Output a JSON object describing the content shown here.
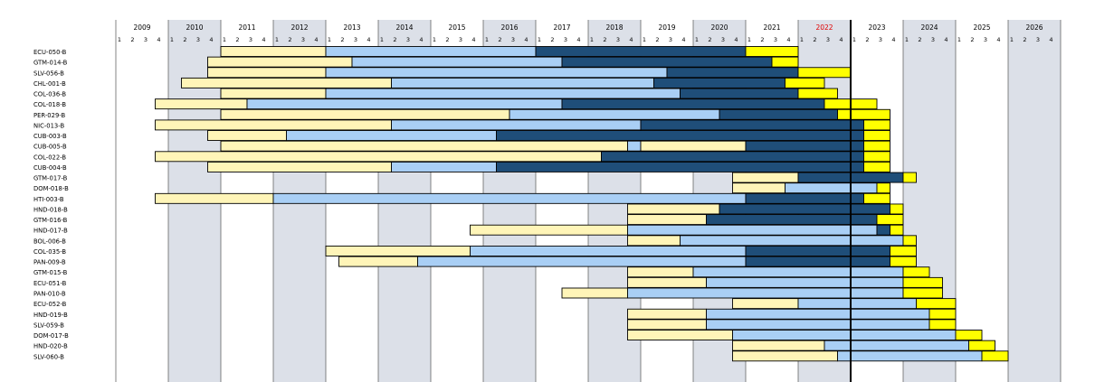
{
  "chart_data": {
    "type": "gantt",
    "start_year": 2009,
    "end_year": 2026,
    "quarter_labels": [
      "1",
      "2",
      "3",
      "4"
    ],
    "highlight_year": 2022,
    "current_marker": "2023 Q1",
    "colors": {
      "preparation": "#fff5b8",
      "execution": "#a9cff5",
      "late_execution": "#1f4e79",
      "extension": "#ffff00",
      "shade": "#dce0e8",
      "highlight_label": "#e00000",
      "marker": "#000000"
    },
    "rows": [
      {
        "label": "ECU-050-B",
        "segs": [
          [
            "2011 Q1",
            "2013 Q1",
            "preparation"
          ],
          [
            "2013 Q1",
            "2017 Q1",
            "execution"
          ],
          [
            "2017 Q1",
            "2021 Q1",
            "late_execution"
          ],
          [
            "2021 Q1",
            "2022 Q1",
            "extension"
          ]
        ]
      },
      {
        "label": "GTM-014-B",
        "segs": [
          [
            "2010 Q4",
            "2013 Q3",
            "preparation"
          ],
          [
            "2013 Q3",
            "2017 Q3",
            "execution"
          ],
          [
            "2017 Q3",
            "2021 Q3",
            "late_execution"
          ],
          [
            "2021 Q3",
            "2022 Q1",
            "extension"
          ]
        ]
      },
      {
        "label": "SLV-056-B",
        "segs": [
          [
            "2010 Q4",
            "2013 Q1",
            "preparation"
          ],
          [
            "2013 Q1",
            "2019 Q3",
            "execution"
          ],
          [
            "2019 Q3",
            "2022 Q1",
            "late_execution"
          ],
          [
            "2022 Q1",
            "2023 Q1",
            "extension"
          ]
        ]
      },
      {
        "label": "CHL-001-B",
        "segs": [
          [
            "2010 Q2",
            "2014 Q2",
            "preparation"
          ],
          [
            "2014 Q2",
            "2019 Q2",
            "execution"
          ],
          [
            "2019 Q2",
            "2021 Q4",
            "late_execution"
          ],
          [
            "2021 Q4",
            "2022 Q3",
            "extension"
          ]
        ]
      },
      {
        "label": "COL-036-B",
        "segs": [
          [
            "2011 Q1",
            "2013 Q1",
            "preparation"
          ],
          [
            "2013 Q1",
            "2019 Q4",
            "execution"
          ],
          [
            "2019 Q4",
            "2022 Q1",
            "late_execution"
          ],
          [
            "2022 Q1",
            "2022 Q4",
            "extension"
          ]
        ]
      },
      {
        "label": "COL-018-B",
        "segs": [
          [
            "2009 Q4",
            "2011 Q3",
            "preparation"
          ],
          [
            "2011 Q3",
            "2017 Q3",
            "execution"
          ],
          [
            "2017 Q3",
            "2022 Q3",
            "late_execution"
          ],
          [
            "2022 Q3",
            "2023 Q3",
            "extension"
          ]
        ]
      },
      {
        "label": "PER-029-B",
        "segs": [
          [
            "2011 Q1",
            "2016 Q3",
            "preparation"
          ],
          [
            "2016 Q3",
            "2020 Q3",
            "execution"
          ],
          [
            "2020 Q3",
            "2022 Q4",
            "late_execution"
          ],
          [
            "2022 Q4",
            "2023 Q4",
            "extension"
          ]
        ]
      },
      {
        "label": "NIC-013-B",
        "segs": [
          [
            "2009 Q4",
            "2014 Q2",
            "preparation"
          ],
          [
            "2014 Q2",
            "2019 Q1",
            "execution"
          ],
          [
            "2019 Q1",
            "2023 Q2",
            "late_execution"
          ],
          [
            "2023 Q2",
            "2023 Q4",
            "extension"
          ]
        ]
      },
      {
        "label": "CUB-003-B",
        "segs": [
          [
            "2010 Q4",
            "2012 Q2",
            "preparation"
          ],
          [
            "2012 Q2",
            "2016 Q2",
            "execution"
          ],
          [
            "2016 Q2",
            "2023 Q2",
            "late_execution"
          ],
          [
            "2023 Q2",
            "2023 Q4",
            "extension"
          ]
        ]
      },
      {
        "label": "CUB-005-B",
        "segs": [
          [
            "2011 Q1",
            "2018 Q4",
            "preparation"
          ],
          [
            "2018 Q4",
            "2019 Q1",
            "execution"
          ],
          [
            "2019 Q1",
            "2021 Q1",
            "preparation"
          ],
          [
            "2021 Q1",
            "2023 Q2",
            "late_execution"
          ],
          [
            "2023 Q2",
            "2023 Q4",
            "extension"
          ]
        ]
      },
      {
        "label": "COL-022-B",
        "segs": [
          [
            "2009 Q4",
            "2018 Q2",
            "preparation"
          ],
          [
            "2018 Q2",
            "2023 Q2",
            "late_execution"
          ],
          [
            "2023 Q2",
            "2023 Q4",
            "extension"
          ]
        ]
      },
      {
        "label": "CUB-004-B",
        "segs": [
          [
            "2010 Q4",
            "2014 Q2",
            "preparation"
          ],
          [
            "2014 Q2",
            "2016 Q2",
            "execution"
          ],
          [
            "2016 Q2",
            "2023 Q2",
            "late_execution"
          ],
          [
            "2023 Q2",
            "2023 Q4",
            "extension"
          ]
        ]
      },
      {
        "label": "GTM-017-B",
        "segs": [
          [
            "2020 Q4",
            "2022 Q1",
            "preparation"
          ],
          [
            "2022 Q1",
            "2024 Q1",
            "late_execution"
          ],
          [
            "2024 Q1",
            "2024 Q2",
            "extension"
          ]
        ]
      },
      {
        "label": "DOM-018-B",
        "segs": [
          [
            "2020 Q4",
            "2021 Q4",
            "preparation"
          ],
          [
            "2021 Q4",
            "2023 Q3",
            "execution"
          ],
          [
            "2023 Q3",
            "2023 Q4",
            "extension"
          ]
        ]
      },
      {
        "label": "HTI-003-B",
        "segs": [
          [
            "2009 Q4",
            "2012 Q1",
            "preparation"
          ],
          [
            "2012 Q1",
            "2021 Q1",
            "execution"
          ],
          [
            "2021 Q1",
            "2023 Q2",
            "late_execution"
          ],
          [
            "2023 Q2",
            "2023 Q4",
            "extension"
          ]
        ]
      },
      {
        "label": "HND-018-B",
        "segs": [
          [
            "2018 Q4",
            "2020 Q3",
            "preparation"
          ],
          [
            "2020 Q3",
            "2023 Q4",
            "late_execution"
          ],
          [
            "2023 Q4",
            "2024 Q1",
            "extension"
          ]
        ]
      },
      {
        "label": "GTM-016-B",
        "segs": [
          [
            "2018 Q4",
            "2020 Q2",
            "preparation"
          ],
          [
            "2020 Q2",
            "2023 Q3",
            "late_execution"
          ],
          [
            "2023 Q3",
            "2024 Q1",
            "extension"
          ]
        ]
      },
      {
        "label": "HND-017-B",
        "segs": [
          [
            "2015 Q4",
            "2018 Q4",
            "preparation"
          ],
          [
            "2018 Q4",
            "2023 Q3",
            "execution"
          ],
          [
            "2023 Q3",
            "2023 Q4",
            "late_execution"
          ],
          [
            "2023 Q4",
            "2024 Q1",
            "extension"
          ]
        ]
      },
      {
        "label": "BOL-006-B",
        "segs": [
          [
            "2018 Q4",
            "2019 Q4",
            "preparation"
          ],
          [
            "2019 Q4",
            "2024 Q1",
            "execution"
          ],
          [
            "2024 Q1",
            "2024 Q2",
            "extension"
          ]
        ]
      },
      {
        "label": "COL-035-B",
        "segs": [
          [
            "2013 Q1",
            "2015 Q4",
            "preparation"
          ],
          [
            "2015 Q4",
            "2021 Q1",
            "execution"
          ],
          [
            "2021 Q1",
            "2023 Q4",
            "late_execution"
          ],
          [
            "2023 Q4",
            "2024 Q2",
            "extension"
          ]
        ]
      },
      {
        "label": "PAN-009-B",
        "segs": [
          [
            "2013 Q2",
            "2014 Q4",
            "preparation"
          ],
          [
            "2014 Q4",
            "2021 Q1",
            "execution"
          ],
          [
            "2021 Q1",
            "2023 Q4",
            "late_execution"
          ],
          [
            "2023 Q4",
            "2024 Q2",
            "extension"
          ]
        ]
      },
      {
        "label": "GTM-015-B",
        "segs": [
          [
            "2018 Q4",
            "2020 Q1",
            "preparation"
          ],
          [
            "2020 Q1",
            "2024 Q1",
            "execution"
          ],
          [
            "2024 Q1",
            "2024 Q3",
            "extension"
          ]
        ]
      },
      {
        "label": "ECU-051-B",
        "segs": [
          [
            "2018 Q4",
            "2020 Q2",
            "preparation"
          ],
          [
            "2020 Q2",
            "2024 Q1",
            "execution"
          ],
          [
            "2024 Q1",
            "2024 Q4",
            "extension"
          ]
        ]
      },
      {
        "label": "PAN-010-B",
        "segs": [
          [
            "2017 Q3",
            "2018 Q4",
            "preparation"
          ],
          [
            "2018 Q4",
            "2024 Q1",
            "execution"
          ],
          [
            "2024 Q1",
            "2024 Q4",
            "extension"
          ]
        ]
      },
      {
        "label": "ECU-052-B",
        "segs": [
          [
            "2020 Q4",
            "2022 Q1",
            "preparation"
          ],
          [
            "2022 Q1",
            "2024 Q2",
            "execution"
          ],
          [
            "2024 Q2",
            "2025 Q1",
            "extension"
          ]
        ]
      },
      {
        "label": "HND-019-B",
        "segs": [
          [
            "2018 Q4",
            "2020 Q2",
            "preparation"
          ],
          [
            "2020 Q2",
            "2024 Q3",
            "execution"
          ],
          [
            "2024 Q3",
            "2025 Q1",
            "extension"
          ]
        ]
      },
      {
        "label": "SLV-059-B",
        "segs": [
          [
            "2018 Q4",
            "2020 Q2",
            "preparation"
          ],
          [
            "2020 Q2",
            "2024 Q3",
            "execution"
          ],
          [
            "2024 Q3",
            "2025 Q1",
            "extension"
          ]
        ]
      },
      {
        "label": "DOM-017-B",
        "segs": [
          [
            "2018 Q4",
            "2020 Q4",
            "preparation"
          ],
          [
            "2020 Q4",
            "2025 Q1",
            "execution"
          ],
          [
            "2025 Q1",
            "2025 Q3",
            "extension"
          ]
        ]
      },
      {
        "label": "HND-020-B",
        "segs": [
          [
            "2020 Q4",
            "2022 Q3",
            "preparation"
          ],
          [
            "2022 Q3",
            "2025 Q2",
            "execution"
          ],
          [
            "2025 Q2",
            "2025 Q4",
            "extension"
          ]
        ]
      },
      {
        "label": "SLV-060-B",
        "segs": [
          [
            "2020 Q4",
            "2022 Q4",
            "preparation"
          ],
          [
            "2022 Q4",
            "2025 Q3",
            "execution"
          ],
          [
            "2025 Q3",
            "2026 Q1",
            "extension"
          ]
        ]
      }
    ]
  }
}
